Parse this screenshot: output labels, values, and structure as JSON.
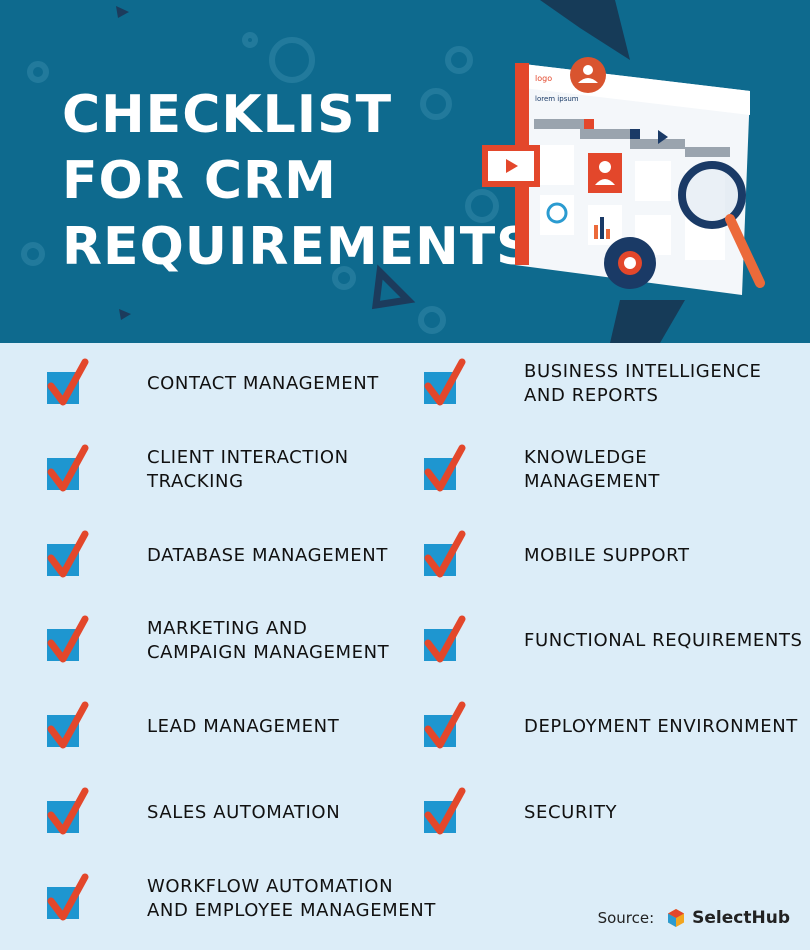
{
  "hero": {
    "title_lines": [
      "CHECKLIST",
      "FOR CRM",
      "REQUIREMENTS"
    ]
  },
  "checklist": {
    "left": [
      {
        "label": "CONTACT MANAGEMENT"
      },
      {
        "label": "CLIENT INTERACTION\nTRACKING"
      },
      {
        "label": "DATABASE MANAGEMENT"
      },
      {
        "label": "MARKETING AND\nCAMPAIGN MANAGEMENT"
      },
      {
        "label": "LEAD MANAGEMENT"
      },
      {
        "label": "SALES AUTOMATION"
      },
      {
        "label": "WORKFLOW AUTOMATION\nAND EMPLOYEE MANAGEMENT"
      }
    ],
    "right": [
      {
        "label": "BUSINESS INTELLIGENCE\nAND REPORTS"
      },
      {
        "label": "KNOWLEDGE\nMANAGEMENT"
      },
      {
        "label": "MOBILE SUPPORT"
      },
      {
        "label": "FUNCTIONAL REQUIREMENTS"
      },
      {
        "label": "DEPLOYMENT ENVIRONMENT"
      },
      {
        "label": "SECURITY"
      }
    ]
  },
  "source": {
    "label": "Source:",
    "brand": "SelectHub"
  },
  "illustration": {
    "logo_text": "logo",
    "heading_text": "lorem ipsum"
  },
  "colors": {
    "header_bg": "#0e6a8e",
    "page_bg": "#dcedf8",
    "checkbox_blue": "#1e96d0",
    "check_red": "#e3472b",
    "accent_orange": "#ec6a3a"
  }
}
